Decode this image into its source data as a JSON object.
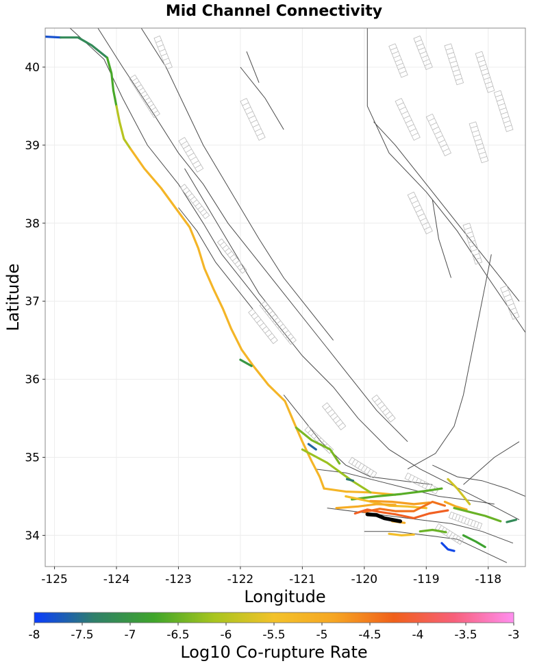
{
  "title": "Mid Channel Connectivity",
  "x_axis": {
    "label": "Longitude",
    "range": [
      -125.15,
      -117.4
    ],
    "ticks": [
      -125,
      -124,
      -123,
      -122,
      -121,
      -120,
      -119,
      -118
    ],
    "tick_labels": [
      "-125",
      "-124",
      "-123",
      "-122",
      "-121",
      "-120",
      "-119",
      "-118"
    ]
  },
  "y_axis": {
    "label": "Latitude",
    "range": [
      33.6,
      40.5
    ],
    "ticks": [
      34,
      35,
      36,
      37,
      38,
      39,
      40
    ],
    "tick_labels": [
      "34",
      "35",
      "36",
      "37",
      "38",
      "39",
      "40"
    ]
  },
  "colorbar": {
    "label": "Log10 Co-rupture Rate",
    "range": [
      -8,
      -3
    ],
    "ticks": [
      -8,
      -7.5,
      -7,
      -6.5,
      -6,
      -5.5,
      -5,
      -4.5,
      -4,
      -3.5,
      -3
    ],
    "tick_labels": [
      "-8",
      "-7.5",
      "-7",
      "-6.5",
      "-6",
      "-5.5",
      "-5",
      "-4.5",
      "-4",
      "-3.5",
      "-3"
    ],
    "stops": [
      "#0a3cff",
      "#2f7f6a",
      "#3fa52a",
      "#a8c51f",
      "#f3c22a",
      "#f6a623",
      "#f0601a",
      "#f7607a",
      "#ff8ff0"
    ]
  },
  "chart_data": {
    "type": "map",
    "title": "Mid Channel Connectivity",
    "xlabel": "Longitude",
    "ylabel": "Latitude",
    "xlim": [
      -125.15,
      -117.4
    ],
    "ylim": [
      33.6,
      40.5
    ],
    "colorbar_label": "Log10 Co-rupture Rate",
    "colorbar_range": [
      -8,
      -3
    ],
    "target_section": {
      "name": "Mid Channel",
      "color": "#000000",
      "coords": [
        [
          -119.95,
          34.27
        ],
        [
          -119.8,
          34.26
        ],
        [
          -119.68,
          34.22
        ],
        [
          -119.55,
          34.2
        ],
        [
          -119.42,
          34.18
        ]
      ]
    },
    "segments": [
      {
        "value": -7.8,
        "coords": [
          [
            -125.15,
            40.39
          ],
          [
            -124.9,
            40.38
          ]
        ]
      },
      {
        "value": -7.2,
        "coords": [
          [
            -124.9,
            40.38
          ],
          [
            -124.62,
            40.38
          ],
          [
            -124.4,
            40.28
          ],
          [
            -124.15,
            40.12
          ]
        ]
      },
      {
        "value": -6.7,
        "coords": [
          [
            -124.15,
            40.12
          ],
          [
            -124.08,
            39.92
          ],
          [
            -124.05,
            39.7
          ],
          [
            -124.0,
            39.5
          ]
        ]
      },
      {
        "value": -6.0,
        "coords": [
          [
            -124.0,
            39.5
          ],
          [
            -123.95,
            39.3
          ],
          [
            -123.88,
            39.08
          ],
          [
            -123.77,
            38.95
          ]
        ]
      },
      {
        "value": -5.2,
        "coords": [
          [
            -123.77,
            38.95
          ],
          [
            -123.55,
            38.7
          ],
          [
            -123.28,
            38.45
          ],
          [
            -123.05,
            38.2
          ],
          [
            -122.82,
            37.95
          ],
          [
            -122.68,
            37.68
          ],
          [
            -122.58,
            37.42
          ],
          [
            -122.43,
            37.15
          ],
          [
            -122.28,
            36.9
          ],
          [
            -122.15,
            36.65
          ],
          [
            -121.98,
            36.38
          ],
          [
            -121.8,
            36.18
          ],
          [
            -121.55,
            35.93
          ],
          [
            -121.28,
            35.72
          ],
          [
            -121.12,
            35.42
          ],
          [
            -121.0,
            35.2
          ],
          [
            -120.85,
            34.95
          ],
          [
            -120.72,
            34.75
          ],
          [
            -120.65,
            34.6
          ]
        ]
      },
      {
        "value": -5.2,
        "coords": [
          [
            -120.65,
            34.6
          ],
          [
            -120.3,
            34.56
          ],
          [
            -119.9,
            34.55
          ],
          [
            -119.5,
            34.52
          ]
        ]
      },
      {
        "value": -7.0,
        "coords": [
          [
            -122.0,
            36.25
          ],
          [
            -121.82,
            36.17
          ]
        ]
      },
      {
        "value": -6.4,
        "coords": [
          [
            -121.1,
            35.38
          ],
          [
            -120.85,
            35.22
          ],
          [
            -120.55,
            35.1
          ],
          [
            -120.4,
            34.92
          ]
        ]
      },
      {
        "value": -6.2,
        "coords": [
          [
            -121.0,
            35.1
          ],
          [
            -120.6,
            34.93
          ],
          [
            -120.2,
            34.7
          ],
          [
            -119.9,
            34.55
          ]
        ]
      },
      {
        "value": -7.6,
        "coords": [
          [
            -120.9,
            35.17
          ],
          [
            -120.78,
            35.1
          ]
        ]
      },
      {
        "value": -7.4,
        "coords": [
          [
            -120.28,
            34.72
          ],
          [
            -120.18,
            34.7
          ]
        ]
      },
      {
        "value": -6.6,
        "coords": [
          [
            -120.2,
            34.46
          ],
          [
            -119.8,
            34.5
          ],
          [
            -119.4,
            34.53
          ],
          [
            -119.0,
            34.57
          ],
          [
            -118.75,
            34.6
          ]
        ]
      },
      {
        "value": -5.4,
        "coords": [
          [
            -120.3,
            34.5
          ],
          [
            -120.0,
            34.45
          ],
          [
            -119.6,
            34.38
          ],
          [
            -119.3,
            34.37
          ],
          [
            -119.0,
            34.35
          ]
        ]
      },
      {
        "value": -4.8,
        "coords": [
          [
            -119.9,
            34.44
          ],
          [
            -119.55,
            34.43
          ],
          [
            -119.2,
            34.4
          ],
          [
            -118.95,
            34.42
          ]
        ]
      },
      {
        "value": -4.4,
        "coords": [
          [
            -120.0,
            34.3
          ],
          [
            -119.75,
            34.34
          ],
          [
            -119.5,
            34.31
          ],
          [
            -119.2,
            34.31
          ],
          [
            -118.9,
            34.43
          ],
          [
            -118.7,
            34.38
          ]
        ]
      },
      {
        "value": -4.2,
        "coords": [
          [
            -120.15,
            34.28
          ],
          [
            -119.95,
            34.33
          ],
          [
            -119.75,
            34.3
          ],
          [
            -119.5,
            34.27
          ],
          [
            -119.2,
            34.22
          ],
          [
            -118.95,
            34.28
          ],
          [
            -118.65,
            34.32
          ]
        ]
      },
      {
        "value": -5.0,
        "coords": [
          [
            -120.45,
            34.35
          ],
          [
            -120.1,
            34.37
          ],
          [
            -119.8,
            34.4
          ],
          [
            -119.5,
            34.39
          ]
        ]
      },
      {
        "value": -5.8,
        "coords": [
          [
            -118.65,
            34.72
          ],
          [
            -118.5,
            34.6
          ],
          [
            -118.38,
            34.48
          ],
          [
            -118.3,
            34.4
          ]
        ]
      },
      {
        "value": -5.0,
        "coords": [
          [
            -118.7,
            34.43
          ],
          [
            -118.52,
            34.37
          ],
          [
            -118.35,
            34.33
          ]
        ]
      },
      {
        "value": -6.5,
        "coords": [
          [
            -118.55,
            34.35
          ],
          [
            -118.3,
            34.3
          ],
          [
            -118.05,
            34.25
          ],
          [
            -117.8,
            34.18
          ]
        ]
      },
      {
        "value": -6.5,
        "coords": [
          [
            -119.1,
            34.05
          ],
          [
            -118.9,
            34.07
          ],
          [
            -118.68,
            34.04
          ]
        ]
      },
      {
        "value": -5.4,
        "coords": [
          [
            -119.6,
            34.02
          ],
          [
            -119.4,
            34.0
          ],
          [
            -119.2,
            34.01
          ]
        ]
      },
      {
        "value": -6.8,
        "coords": [
          [
            -118.4,
            34.0
          ],
          [
            -118.2,
            33.92
          ],
          [
            -118.05,
            33.85
          ]
        ]
      },
      {
        "value": -7.2,
        "coords": [
          [
            -117.7,
            34.17
          ],
          [
            -117.55,
            34.2
          ]
        ]
      },
      {
        "value": -7.9,
        "coords": [
          [
            -118.75,
            33.9
          ],
          [
            -118.65,
            33.82
          ],
          [
            -118.55,
            33.8
          ]
        ]
      },
      {
        "value": -5.0,
        "coords": [
          [
            -119.55,
            34.18
          ],
          [
            -119.35,
            34.16
          ]
        ]
      }
    ]
  }
}
